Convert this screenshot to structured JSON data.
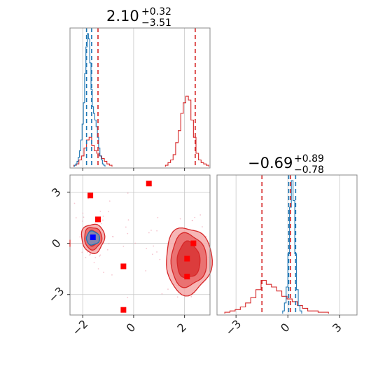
{
  "colors": {
    "blue": "#1f77b4",
    "red": "#d62728",
    "red_fill_1": "#f4a9a9",
    "red_fill_2": "#e86666",
    "red_fill_3": "#d93333",
    "blue_fill": "#6a9fd0",
    "scatter_pink": "#f0a0b0",
    "marker_red": "#ff0000",
    "marker_blue": "#0000ff",
    "grid": "#c8c8c8",
    "frame": "#888888"
  },
  "chart_data": [
    {
      "type": "histogram",
      "panel": "top-left",
      "title": {
        "value": "2.10",
        "plus": "+0.32",
        "minus": "−3.51"
      },
      "xlim": [
        -2.5,
        3.0
      ],
      "grid": true,
      "quantile_lines": {
        "blue": [
          -1.85,
          -1.65
        ],
        "red": [
          -1.4,
          2.42
        ]
      },
      "blue_hist": {
        "x": [
          -2.3,
          -2.25,
          -2.2,
          -2.15,
          -2.1,
          -2.05,
          -2.0,
          -1.95,
          -1.9,
          -1.85,
          -1.8,
          -1.75,
          -1.7,
          -1.65,
          -1.6,
          -1.55,
          -1.5,
          -1.45,
          -1.4,
          -1.35,
          -1.3,
          -1.25,
          -1.2,
          -1.15
        ],
        "y": [
          0.01,
          0.02,
          0.04,
          0.07,
          0.12,
          0.2,
          0.32,
          0.48,
          0.7,
          0.9,
          1.0,
          0.96,
          0.78,
          0.58,
          0.45,
          0.4,
          0.35,
          0.3,
          0.22,
          0.14,
          0.08,
          0.05,
          0.02,
          0.01
        ]
      },
      "red_hist": {
        "x": [
          -2.3,
          -2.2,
          -2.1,
          -2.0,
          -1.9,
          -1.8,
          -1.7,
          -1.6,
          -1.5,
          -1.4,
          -1.3,
          -1.2,
          -1.1,
          -1.0,
          -0.9,
          1.3,
          1.4,
          1.5,
          1.6,
          1.7,
          1.8,
          1.9,
          2.0,
          2.1,
          2.2,
          2.3,
          2.4,
          2.5,
          2.6,
          2.7,
          2.8,
          2.9
        ],
        "y": [
          0.01,
          0.02,
          0.05,
          0.08,
          0.14,
          0.2,
          0.22,
          0.16,
          0.12,
          0.1,
          0.08,
          0.06,
          0.04,
          0.02,
          0.01,
          0.01,
          0.03,
          0.05,
          0.09,
          0.18,
          0.27,
          0.4,
          0.48,
          0.53,
          0.5,
          0.35,
          0.22,
          0.1,
          0.05,
          0.03,
          0.02,
          0.01
        ]
      }
    },
    {
      "type": "histogram",
      "panel": "bottom-right",
      "title": {
        "value": "−0.69",
        "plus": "+0.89",
        "minus": "−0.78"
      },
      "xlim": [
        -4.1,
        4.0
      ],
      "xticks": [
        "−3",
        "0",
        "3"
      ],
      "xtick_values": [
        -3,
        0,
        3
      ],
      "grid": true,
      "quantile_lines": {
        "red": [
          -1.5,
          0.15
        ],
        "blue": [
          0.05,
          0.45
        ]
      },
      "blue_hist": {
        "x": [
          -0.25,
          -0.15,
          -0.05,
          0.05,
          0.15,
          0.25,
          0.35,
          0.45,
          0.55,
          0.65,
          0.75
        ],
        "y": [
          0.02,
          0.08,
          0.2,
          0.45,
          0.8,
          1.0,
          0.85,
          0.45,
          0.18,
          0.06,
          0.02
        ]
      },
      "red_hist": {
        "x": [
          -3.5,
          -3.2,
          -2.9,
          -2.6,
          -2.3,
          -2.0,
          -1.7,
          -1.4,
          -1.1,
          -0.8,
          -0.5,
          -0.2,
          0.1,
          0.4,
          0.7,
          1.0,
          1.3,
          1.6,
          1.9,
          2.2
        ],
        "y": [
          0.01,
          0.02,
          0.03,
          0.05,
          0.08,
          0.12,
          0.18,
          0.25,
          0.22,
          0.2,
          0.17,
          0.13,
          0.11,
          0.09,
          0.06,
          0.04,
          0.02,
          0.02,
          0.01,
          0.01
        ]
      }
    },
    {
      "type": "scatter",
      "panel": "bottom-left",
      "xlim": [
        -2.5,
        3.0
      ],
      "ylim": [
        -4.2,
        4.0
      ],
      "xticks": [
        "−2",
        "0",
        "2"
      ],
      "xtick_values": [
        -2,
        0,
        2
      ],
      "yticks": [
        "3",
        "0",
        "−3"
      ],
      "ytick_values": [
        3,
        0,
        -3
      ],
      "grid": true,
      "red_markers": [
        {
          "x": -1.7,
          "y": 2.8
        },
        {
          "x": -1.4,
          "y": 1.4
        },
        {
          "x": 0.6,
          "y": 3.5
        },
        {
          "x": -0.4,
          "y": -1.35
        },
        {
          "x": -0.4,
          "y": -3.9
        },
        {
          "x": 2.1,
          "y": -0.9
        },
        {
          "x": 2.1,
          "y": -1.95
        },
        {
          "x": 2.35,
          "y": 0.0
        }
      ],
      "blue_marker": {
        "x": -1.6,
        "y": 0.35
      },
      "contour_clusters": [
        {
          "color": "red",
          "cx": -1.6,
          "cy": 0.3,
          "levels": [
            [
              0.45,
              0.85
            ],
            [
              0.34,
              0.65
            ],
            [
              0.22,
              0.45
            ]
          ]
        },
        {
          "color": "red",
          "cx": 2.15,
          "cy": -1.0,
          "levels": [
            [
              0.9,
              1.95
            ],
            [
              0.7,
              1.55
            ],
            [
              0.45,
              1.05
            ]
          ]
        },
        {
          "color": "blue",
          "cx": -1.6,
          "cy": 0.3,
          "levels": [
            [
              0.26,
              0.4
            ]
          ]
        }
      ]
    }
  ]
}
